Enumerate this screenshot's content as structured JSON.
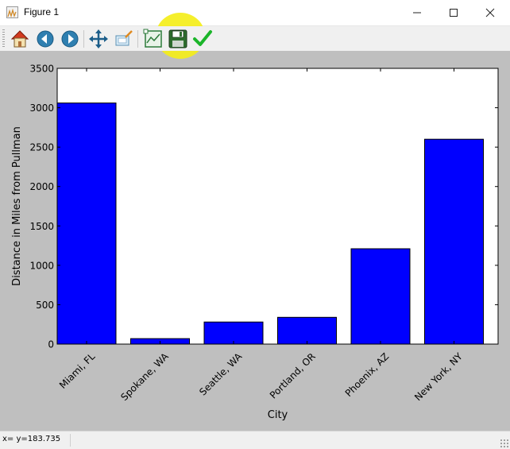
{
  "window": {
    "title": "Figure 1",
    "minimize_glyph": "—",
    "maximize_glyph": "☐",
    "close_glyph": "✕"
  },
  "toolbar": {
    "buttons": [
      {
        "name": "home",
        "icon": "home-icon"
      },
      {
        "name": "back",
        "icon": "back-arrow-icon"
      },
      {
        "name": "forward",
        "icon": "forward-arrow-icon"
      },
      {
        "name": "pan",
        "icon": "pan-move-icon"
      },
      {
        "name": "zoom",
        "icon": "zoom-rect-icon"
      },
      {
        "name": "subplots",
        "icon": "configure-subplots-icon"
      },
      {
        "name": "save",
        "icon": "save-floppy-icon",
        "highlighted": true
      },
      {
        "name": "edit",
        "icon": "checkmark-edit-icon"
      }
    ],
    "highlight_color": "#f4ee1a"
  },
  "status": {
    "text": "x= y=183.735"
  },
  "chart_data": {
    "type": "bar",
    "categories": [
      "Miami, FL",
      "Spokane, WA",
      "Seattle, WA",
      "Portland, OR",
      "Phoenix, AZ",
      "New York, NY"
    ],
    "values": [
      3060,
      70,
      280,
      340,
      1210,
      2600
    ],
    "xlabel": "City",
    "ylabel": "Distance in Miles from Pullman",
    "ylim": [
      0,
      3500
    ],
    "yticks": [
      0,
      500,
      1000,
      1500,
      2000,
      2500,
      3000,
      3500
    ],
    "bar_color": "#0000ff",
    "edge_color": "#000000",
    "background": "#ffffff",
    "figure_background": "#bfbfbf",
    "grid": false
  }
}
